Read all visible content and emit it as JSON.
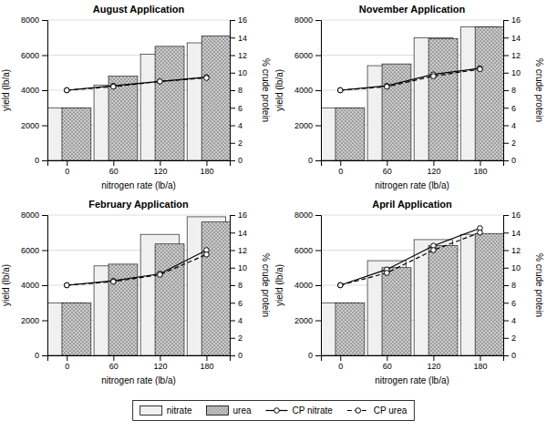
{
  "chart_data": [
    {
      "type": "bar",
      "title": "August Application",
      "x": [
        0,
        60,
        120,
        180
      ],
      "xlim": [
        -25,
        210
      ],
      "xticks": [
        0,
        60,
        120,
        180
      ],
      "xlabel": "nitrogen rate (lb/a)",
      "ylabel": "yield (lb/a)",
      "y2label": "% crude protein",
      "ylim": [
        0,
        8000
      ],
      "yticks": [
        0,
        2000,
        4000,
        6000,
        8000
      ],
      "y2lim": [
        0,
        16
      ],
      "y2ticks": [
        0,
        2,
        4,
        6,
        8,
        10,
        12,
        14,
        16
      ],
      "grid": true,
      "legend": "bottom",
      "series": [
        {
          "name": "nitrate",
          "color": "#f0f0f0",
          "values": [
            3000,
            4300,
            6050,
            6700
          ]
        },
        {
          "name": "urea",
          "color": "#cccccc",
          "values": [
            3000,
            4800,
            6500,
            7100
          ]
        },
        {
          "name": "CP nitrate",
          "type": "line",
          "axis": "y2",
          "color": "#000000",
          "line_style": "solid",
          "marker": "circle",
          "values": [
            8.0,
            8.5,
            9.0,
            9.5
          ]
        },
        {
          "name": "CP urea",
          "type": "line",
          "axis": "y2",
          "color": "#000000",
          "line_style": "dashed",
          "marker": "circle",
          "values": [
            8.0,
            8.4,
            9.0,
            9.4
          ]
        }
      ]
    },
    {
      "type": "bar",
      "title": "November Application",
      "x": [
        0,
        60,
        120,
        180
      ],
      "xlim": [
        -25,
        210
      ],
      "xticks": [
        0,
        60,
        120,
        180
      ],
      "xlabel": "nitrogen rate (lb/a)",
      "ylabel": "yield (lb/a)",
      "y2label": "% crude protein",
      "ylim": [
        0,
        8000
      ],
      "yticks": [
        0,
        2000,
        4000,
        6000,
        8000
      ],
      "y2lim": [
        0,
        16
      ],
      "y2ticks": [
        0,
        2,
        4,
        6,
        8,
        10,
        12,
        14,
        16
      ],
      "grid": true,
      "series": [
        {
          "name": "nitrate",
          "color": "#f0f0f0",
          "values": [
            3000,
            5400,
            7000,
            7600
          ]
        },
        {
          "name": "urea",
          "color": "#cccccc",
          "values": [
            3000,
            5500,
            6950,
            7600
          ]
        },
        {
          "name": "CP nitrate",
          "type": "line",
          "axis": "y2",
          "color": "#000000",
          "line_style": "solid",
          "marker": "circle",
          "values": [
            8.0,
            8.5,
            9.8,
            10.5
          ]
        },
        {
          "name": "CP urea",
          "type": "line",
          "axis": "y2",
          "color": "#000000",
          "line_style": "dashed",
          "marker": "circle",
          "values": [
            8.0,
            8.4,
            9.6,
            10.4
          ]
        }
      ]
    },
    {
      "type": "bar",
      "title": "February Application",
      "x": [
        0,
        60,
        120,
        180
      ],
      "xlim": [
        -25,
        210
      ],
      "xticks": [
        0,
        60,
        120,
        180
      ],
      "xlabel": "nitrogen rate (lb/a)",
      "ylabel": "yield (lb/a)",
      "y2label": "% crude protein",
      "ylim": [
        0,
        8000
      ],
      "yticks": [
        0,
        2000,
        4000,
        6000,
        8000
      ],
      "y2lim": [
        0,
        16
      ],
      "y2ticks": [
        0,
        2,
        4,
        6,
        8,
        10,
        12,
        14,
        16
      ],
      "grid": true,
      "series": [
        {
          "name": "nitrate",
          "color": "#f0f0f0",
          "values": [
            3000,
            5100,
            6900,
            7900
          ]
        },
        {
          "name": "urea",
          "color": "#cccccc",
          "values": [
            3000,
            5200,
            6350,
            7600
          ]
        },
        {
          "name": "CP nitrate",
          "type": "line",
          "axis": "y2",
          "color": "#000000",
          "line_style": "solid",
          "marker": "circle",
          "values": [
            8.0,
            8.5,
            9.3,
            12.0
          ]
        },
        {
          "name": "CP urea",
          "type": "line",
          "axis": "y2",
          "color": "#000000",
          "line_style": "dashed",
          "marker": "circle",
          "values": [
            8.0,
            8.4,
            9.2,
            11.5
          ]
        }
      ]
    },
    {
      "type": "bar",
      "title": "April Application",
      "x": [
        0,
        60,
        120,
        180
      ],
      "xlim": [
        -25,
        210
      ],
      "xticks": [
        0,
        60,
        120,
        180
      ],
      "xlabel": "nitrogen rate (lb/a)",
      "ylabel": "yield (lb/a)",
      "y2label": "% crude protein",
      "ylim": [
        0,
        8000
      ],
      "yticks": [
        0,
        2000,
        4000,
        6000,
        8000
      ],
      "y2lim": [
        0,
        16
      ],
      "y2ticks": [
        0,
        2,
        4,
        6,
        8,
        10,
        12,
        14,
        16
      ],
      "grid": true,
      "series": [
        {
          "name": "nitrate",
          "color": "#f0f0f0",
          "values": [
            3000,
            5400,
            6600,
            6900
          ]
        },
        {
          "name": "urea",
          "color": "#cccccc",
          "values": [
            3000,
            5000,
            6250,
            6950
          ]
        },
        {
          "name": "CP nitrate",
          "type": "line",
          "axis": "y2",
          "color": "#000000",
          "line_style": "solid",
          "marker": "circle",
          "values": [
            8.0,
            9.8,
            12.5,
            14.5
          ]
        },
        {
          "name": "CP urea",
          "type": "line",
          "axis": "y2",
          "color": "#000000",
          "line_style": "dashed",
          "marker": "circle",
          "values": [
            8.0,
            9.4,
            12.0,
            14.0
          ]
        }
      ]
    }
  ]
}
